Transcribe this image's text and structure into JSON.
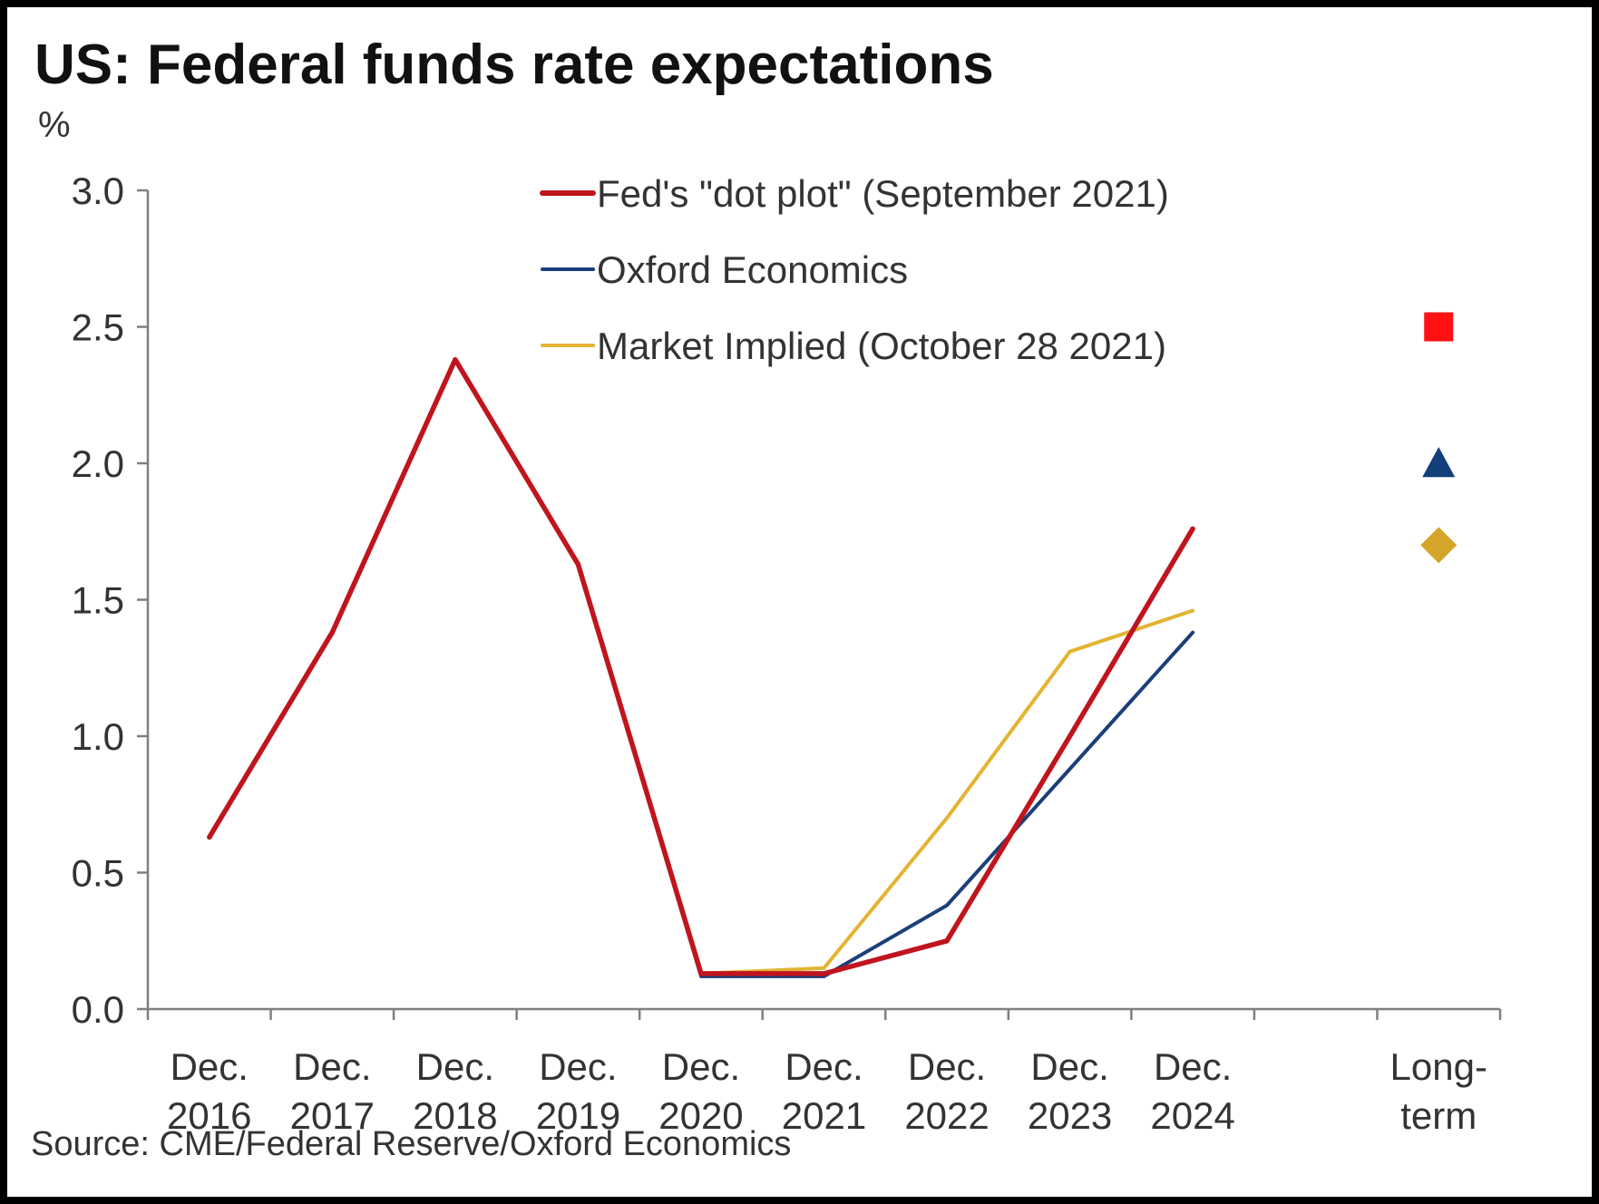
{
  "chart_data": {
    "type": "line",
    "title": "US: Federal funds rate expectations",
    "ylabel": "%",
    "xlabel": "",
    "ylim": [
      0,
      3
    ],
    "y_ticks": [
      "0.0",
      "0.5",
      "1.0",
      "1.5",
      "2.0",
      "2.5",
      "3.0"
    ],
    "y_tick_values": [
      0,
      0.5,
      1.0,
      1.5,
      2.0,
      2.5,
      3.0
    ],
    "categories": [
      [
        "Dec.",
        "2016"
      ],
      [
        "Dec.",
        "2017"
      ],
      [
        "Dec.",
        "2018"
      ],
      [
        "Dec.",
        "2019"
      ],
      [
        "Dec.",
        "2020"
      ],
      [
        "Dec.",
        "2021"
      ],
      [
        "Dec.",
        "2022"
      ],
      [
        "Dec.",
        "2023"
      ],
      [
        "Dec.",
        "2024"
      ],
      [
        "",
        ""
      ],
      [
        "Long-",
        "term"
      ]
    ],
    "series": [
      {
        "name": "Market Implied (October 28 2021)",
        "color": "#E3B432",
        "values": [
          0.63,
          1.38,
          2.38,
          1.63,
          0.13,
          0.15,
          0.7,
          1.31,
          1.46,
          null,
          null
        ],
        "long_term": 1.7,
        "long_term_marker": "diamond",
        "long_term_color": "#D4A52A"
      },
      {
        "name": "Oxford Economics",
        "color": "#1B3F7A",
        "values": [
          0.63,
          1.38,
          2.38,
          1.63,
          0.12,
          0.12,
          0.38,
          0.88,
          1.38,
          null,
          null
        ],
        "long_term": 2.0,
        "long_term_marker": "triangle",
        "long_term_color": "#123E7A"
      },
      {
        "name": "Fed's \"dot plot\" (September 2021)",
        "color": "#C0141E",
        "values": [
          0.63,
          1.38,
          2.38,
          1.63,
          0.13,
          0.13,
          0.25,
          1.0,
          1.76,
          null,
          null
        ],
        "long_term": 2.5,
        "long_term_marker": "square",
        "long_term_color": "#FF1111"
      }
    ],
    "legend": [
      {
        "label": "Fed's \"dot plot\" (September 2021)",
        "color": "#C0141E"
      },
      {
        "label": "Oxford Economics",
        "color": "#1B3F7A"
      },
      {
        "label": "Market Implied (October 28 2021)",
        "color": "#E3B432"
      }
    ],
    "legend_position": "top-center",
    "grid": false,
    "source": "Source: CME/Federal Reserve/Oxford Economics"
  }
}
